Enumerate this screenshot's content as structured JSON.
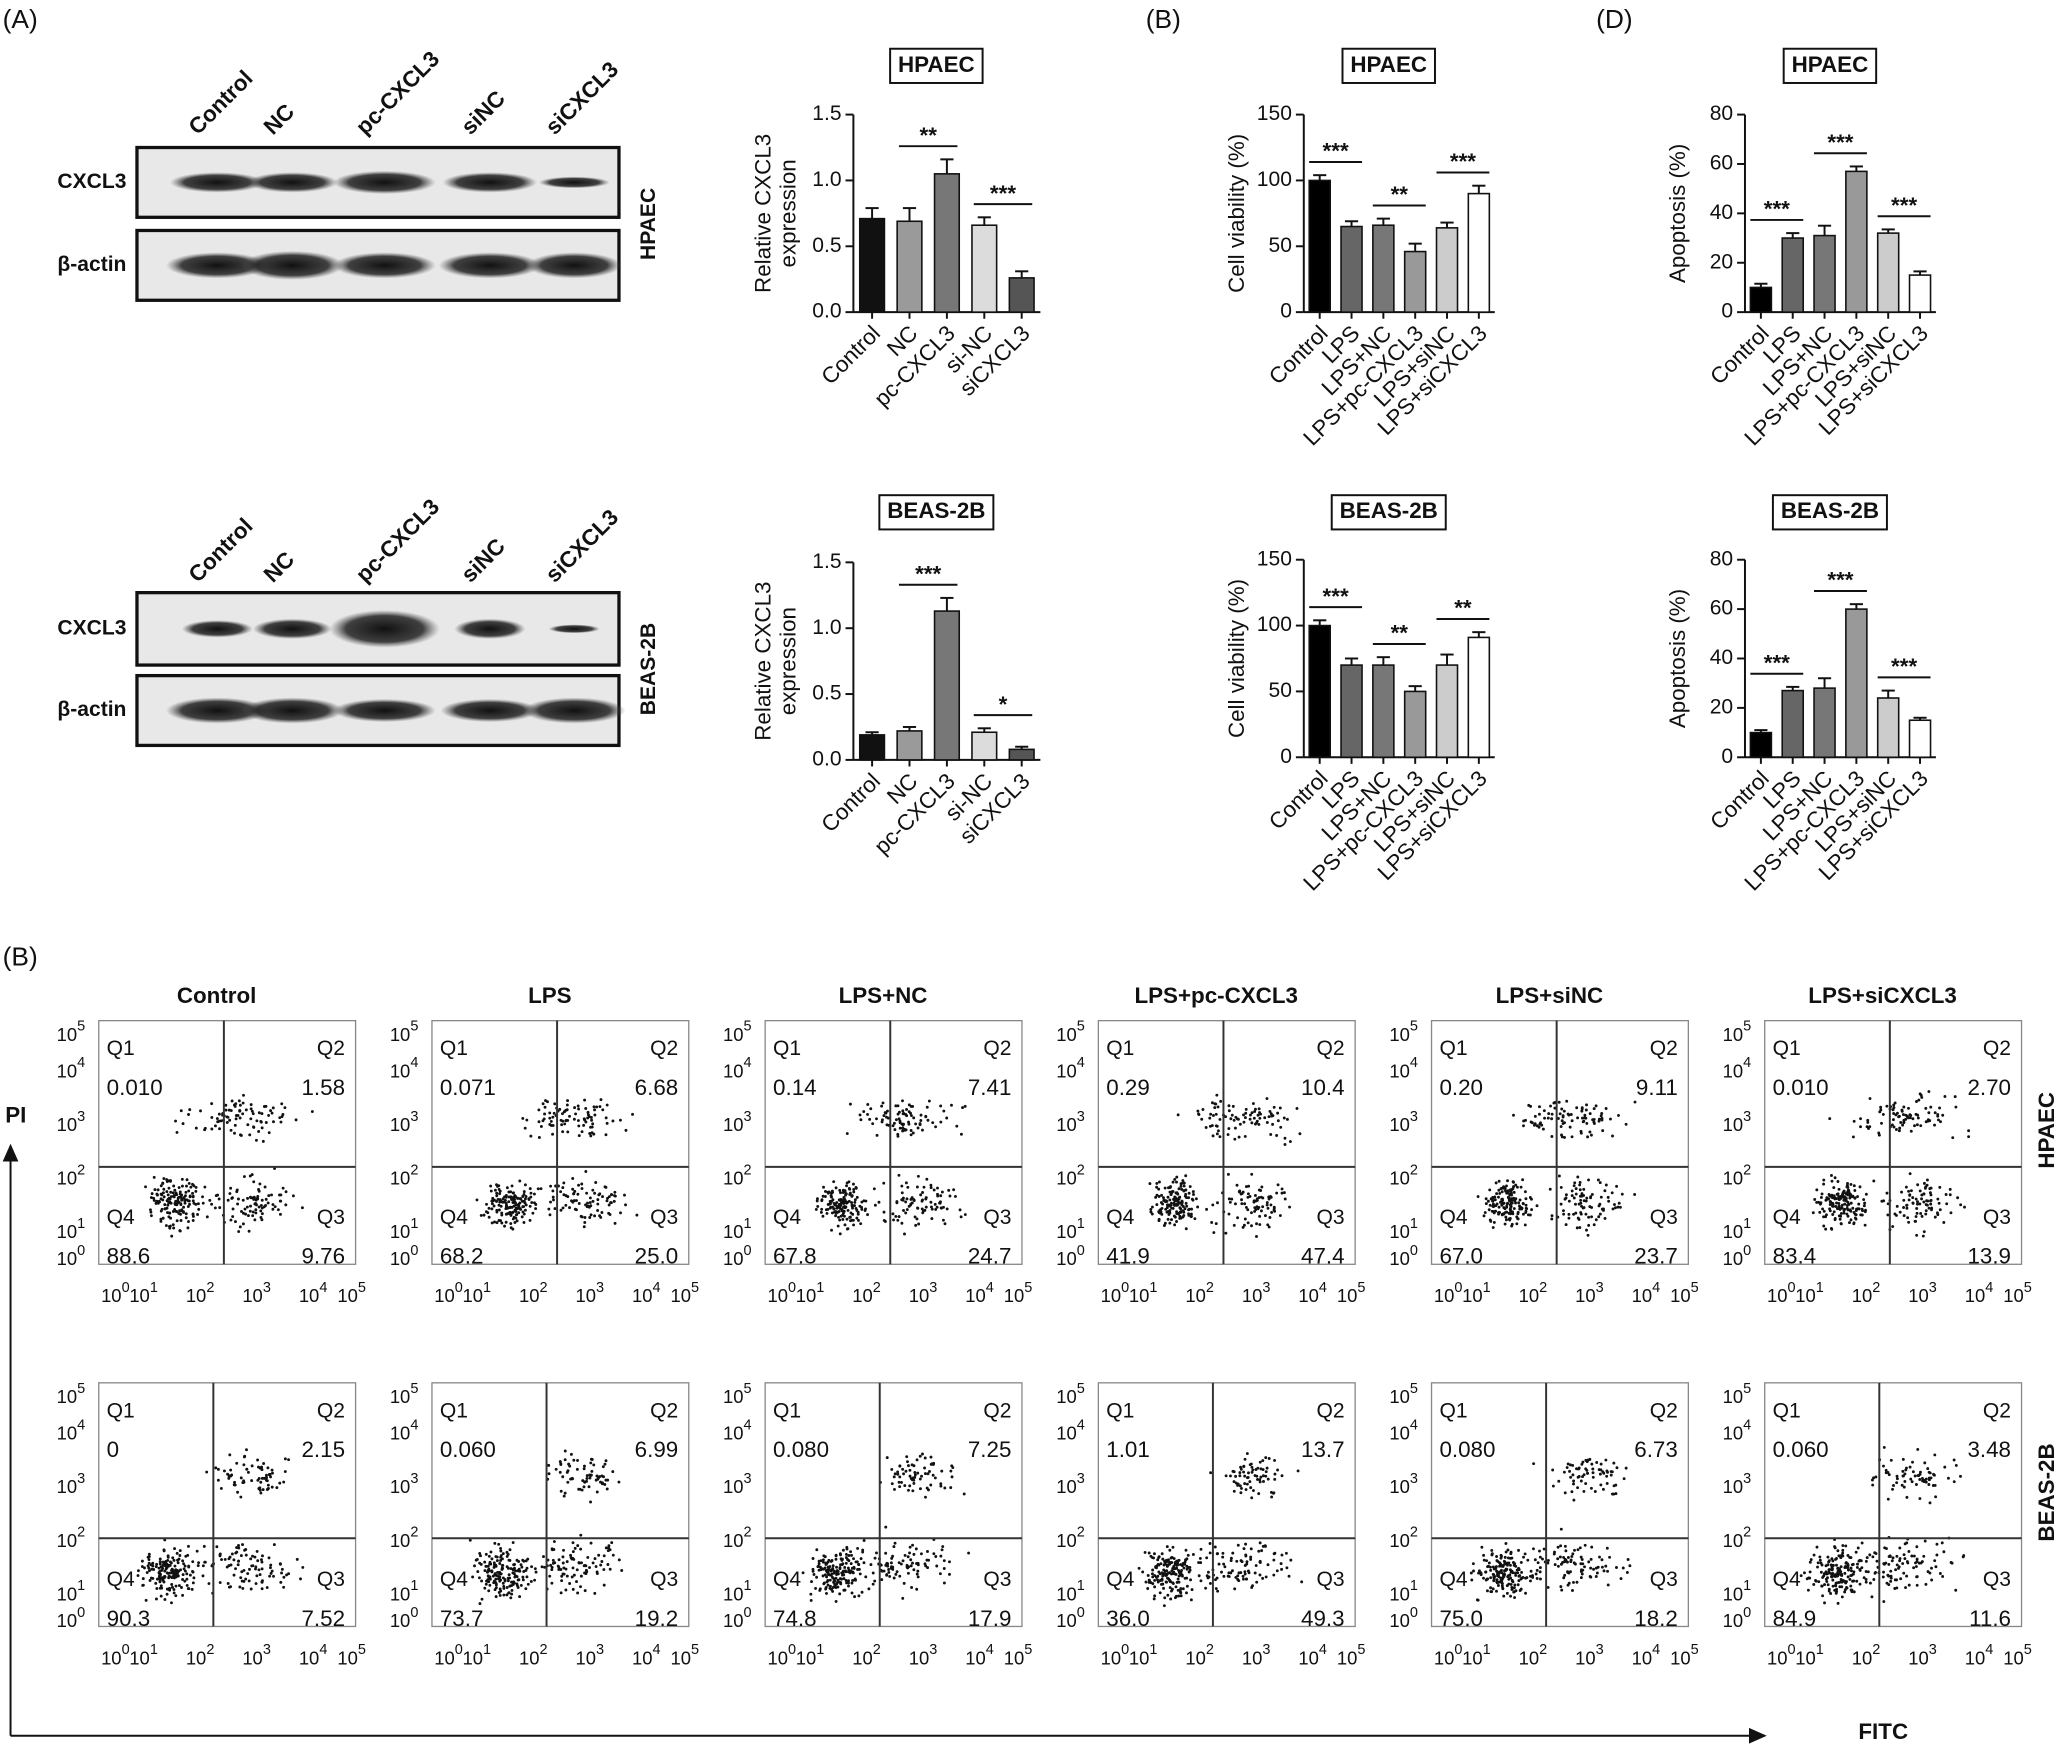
{
  "panel_labels": [
    "(A)",
    "(B)",
    "(D)",
    "(B)"
  ],
  "western_blots": [
    {
      "cell_line": "HPAEC",
      "lanes": [
        "Control",
        "NC",
        "pc-CXCL3",
        "siNC",
        "siCXCL3"
      ],
      "rows": [
        "CXCL3",
        "β-actin"
      ]
    },
    {
      "cell_line": "BEAS-2B",
      "lanes": [
        "Control",
        "NC",
        "pc-CXCL3",
        "siNC",
        "siCXCL3"
      ],
      "rows": [
        "CXCL3",
        "β-actin"
      ]
    }
  ],
  "chart_data": [
    {
      "type": "bar",
      "title": "HPAEC",
      "ylabel_lines": [
        "Relative CXCL3",
        "expression"
      ],
      "categories": [
        "Control",
        "NC",
        "pc-CXCL3",
        "si-NC",
        "siCXCL3"
      ],
      "values": [
        0.71,
        0.69,
        1.05,
        0.66,
        0.26
      ],
      "errors": [
        0.08,
        0.1,
        0.11,
        0.06,
        0.05
      ],
      "colors": [
        "#111111",
        "#9a9a9a",
        "#777777",
        "#dcdcdc",
        "#555555"
      ],
      "ylim": [
        0,
        1.5
      ],
      "yticks": [
        {
          "value": 0,
          "label": "0.0"
        },
        0.5,
        {
          "value": 1,
          "label": "1.0"
        },
        1.5
      ],
      "annotations": [
        {
          "label": "**",
          "between": [
            "NC",
            "pc-CXCL3"
          ]
        },
        {
          "label": "***",
          "between": [
            "si-NC",
            "siCXCL3"
          ]
        }
      ]
    },
    {
      "type": "bar",
      "title": "BEAS-2B",
      "ylabel_lines": [
        "Relative CXCL3",
        "expression"
      ],
      "categories": [
        "Control",
        "NC",
        "pc-CXCL3",
        "si-NC",
        "siCXCL3"
      ],
      "values": [
        0.19,
        0.22,
        1.13,
        0.21,
        0.08
      ],
      "errors": [
        0.02,
        0.03,
        0.1,
        0.03,
        0.02
      ],
      "colors": [
        "#111111",
        "#9a9a9a",
        "#777777",
        "#dcdcdc",
        "#555555"
      ],
      "ylim": [
        0,
        1.5
      ],
      "yticks": [
        {
          "value": 0,
          "label": "0.0"
        },
        0.5,
        {
          "value": 1,
          "label": "1.0"
        },
        1.5
      ],
      "annotations": [
        {
          "label": "***",
          "between": [
            "NC",
            "pc-CXCL3"
          ]
        },
        {
          "label": "*",
          "between": [
            "si-NC",
            "siCXCL3"
          ]
        }
      ]
    },
    {
      "type": "bar",
      "title": "HPAEC",
      "ylabel_lines": [
        "Cell viability (%)"
      ],
      "categories": [
        "Control",
        "LPS",
        "LPS+NC",
        "LPS+pc-CXCL3",
        "LPS+siNC",
        "LPS+siCXCL3"
      ],
      "values": [
        100,
        65,
        66,
        46,
        64,
        90
      ],
      "errors": [
        4,
        4,
        5,
        6,
        4,
        6
      ],
      "colors": [
        "#000000",
        "#666666",
        "#777777",
        "#999999",
        "#cccccc",
        "#ffffff"
      ],
      "ylim": [
        0,
        150
      ],
      "yticks": [
        0,
        50,
        100,
        150
      ],
      "annotations": [
        {
          "label": "***",
          "between": [
            "Control",
            "LPS"
          ]
        },
        {
          "label": "**",
          "between": [
            "LPS+NC",
            "LPS+pc-CXCL3"
          ]
        },
        {
          "label": "***",
          "between": [
            "LPS+siNC",
            "LPS+siCXCL3"
          ]
        }
      ]
    },
    {
      "type": "bar",
      "title": "BEAS-2B",
      "ylabel_lines": [
        "Cell viability (%)"
      ],
      "categories": [
        "Control",
        "LPS",
        "LPS+NC",
        "LPS+pc-CXCL3",
        "LPS+siNC",
        "LPS+siCXCL3"
      ],
      "values": [
        100,
        70,
        70,
        50,
        70,
        91
      ],
      "errors": [
        4,
        5,
        6,
        4,
        8,
        4
      ],
      "colors": [
        "#000000",
        "#666666",
        "#777777",
        "#999999",
        "#cccccc",
        "#ffffff"
      ],
      "ylim": [
        0,
        150
      ],
      "yticks": [
        0,
        50,
        100,
        150
      ],
      "annotations": [
        {
          "label": "***",
          "between": [
            "Control",
            "LPS"
          ]
        },
        {
          "label": "**",
          "between": [
            "LPS+NC",
            "LPS+pc-CXCL3"
          ]
        },
        {
          "label": "**",
          "between": [
            "LPS+siNC",
            "LPS+siCXCL3"
          ]
        }
      ]
    },
    {
      "type": "bar",
      "title": "HPAEC",
      "ylabel_lines": [
        "Apoptosis (%)"
      ],
      "categories": [
        "Control",
        "LPS",
        "LPS+NC",
        "LPS+pc-CXCL3",
        "LPS+siNC",
        "LPS+siCXCL3"
      ],
      "values": [
        10,
        30,
        31,
        57,
        32,
        15
      ],
      "errors": [
        1.5,
        2,
        4,
        2,
        1.5,
        1.5
      ],
      "colors": [
        "#000000",
        "#666666",
        "#777777",
        "#999999",
        "#cccccc",
        "#ffffff"
      ],
      "ylim": [
        0,
        80
      ],
      "yticks": [
        0,
        20,
        40,
        60,
        80
      ],
      "annotations": [
        {
          "label": "***",
          "between": [
            "Control",
            "LPS"
          ]
        },
        {
          "label": "***",
          "between": [
            "LPS+NC",
            "LPS+pc-CXCL3"
          ]
        },
        {
          "label": "***",
          "between": [
            "LPS+siNC",
            "LPS+siCXCL3"
          ]
        }
      ]
    },
    {
      "type": "bar",
      "title": "BEAS-2B",
      "ylabel_lines": [
        "Apoptosis (%)"
      ],
      "categories": [
        "Control",
        "LPS",
        "LPS+NC",
        "LPS+pc-CXCL3",
        "LPS+siNC",
        "LPS+siCXCL3"
      ],
      "values": [
        10,
        27,
        28,
        60,
        24,
        15
      ],
      "errors": [
        1,
        1.5,
        4,
        2,
        3,
        1
      ],
      "colors": [
        "#000000",
        "#666666",
        "#777777",
        "#999999",
        "#cccccc",
        "#ffffff"
      ],
      "ylim": [
        0,
        80
      ],
      "yticks": [
        0,
        20,
        40,
        60,
        80
      ],
      "annotations": [
        {
          "label": "***",
          "between": [
            "Control",
            "LPS"
          ]
        },
        {
          "label": "***",
          "between": [
            "LPS+NC",
            "LPS+pc-CXCL3"
          ]
        },
        {
          "label": "***",
          "between": [
            "LPS+siNC",
            "LPS+siCXCL3"
          ]
        }
      ]
    }
  ],
  "flow_cytometry": {
    "x_label": "FITC",
    "y_label": "PI",
    "tick_base": "10",
    "tick_exponents": [
      "0",
      "1",
      "2",
      "3",
      "4",
      "5"
    ],
    "quadrants": [
      "Q1",
      "Q2",
      "Q3",
      "Q4"
    ],
    "conditions": [
      "Control",
      "LPS",
      "LPS+NC",
      "LPS+pc-CXCL3",
      "LPS+siNC",
      "LPS+siCXCL3"
    ],
    "rows": [
      {
        "cell_line": "HPAEC",
        "panels": [
          [
            "0.010",
            "1.58",
            "9.76",
            "88.6"
          ],
          [
            "0.071",
            "6.68",
            "25.0",
            "68.2"
          ],
          [
            "0.14",
            "7.41",
            "24.7",
            "67.8"
          ],
          [
            "0.29",
            "10.4",
            "47.4",
            "41.9"
          ],
          [
            "0.20",
            "9.11",
            "23.7",
            "67.0"
          ],
          [
            "0.010",
            "2.70",
            "13.9",
            "83.4"
          ]
        ]
      },
      {
        "cell_line": "BEAS-2B",
        "panels": [
          [
            "0",
            "2.15",
            "7.52",
            "90.3"
          ],
          [
            "0.060",
            "6.99",
            "19.2",
            "73.7"
          ],
          [
            "0.080",
            "7.25",
            "17.9",
            "74.8"
          ],
          [
            "1.01",
            "13.7",
            "49.3",
            "36.0"
          ],
          [
            "0.080",
            "6.73",
            "18.2",
            "75.0"
          ],
          [
            "0.060",
            "3.48",
            "11.6",
            "84.9"
          ]
        ]
      }
    ]
  }
}
